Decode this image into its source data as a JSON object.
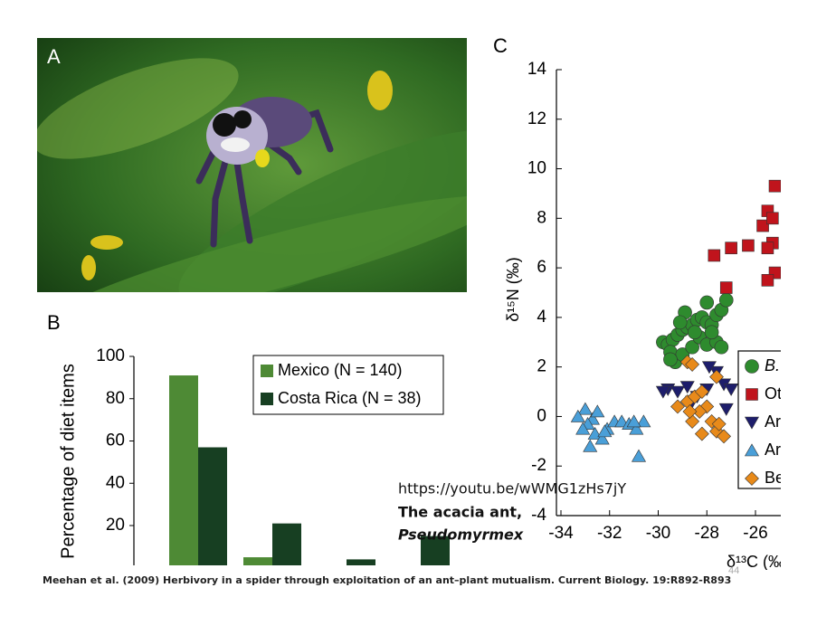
{
  "photo": {
    "label": "A"
  },
  "chart_data": [
    {
      "type": "bar",
      "panel_label": "B",
      "y_label": "Percentage of diet items",
      "categories": [
        null,
        null,
        null,
        null
      ],
      "series": [
        {
          "name": "Mexico (N = 140)",
          "color": "#4e8a35",
          "values": [
            91,
            5,
            1,
            1
          ]
        },
        {
          "name": "Costa Rica (N = 38)",
          "color": "#173f22",
          "values": [
            57,
            21,
            4,
            15
          ]
        }
      ],
      "ylim": [
        0,
        100
      ],
      "yticks": [
        20,
        40,
        60,
        80,
        100
      ],
      "legend": "top-right"
    },
    {
      "type": "scatter",
      "panel_label": "C",
      "x_label": "δ¹³C (‰)",
      "y_label": "δ¹⁵N (‰)",
      "xlim": [
        -34.2,
        -25
      ],
      "ylim": [
        -4,
        14
      ],
      "xticks": [
        -34,
        -32,
        -30,
        -28,
        -26
      ],
      "yticks": [
        -4,
        -2,
        0,
        2,
        4,
        6,
        8,
        10,
        12,
        14
      ],
      "legend": "right",
      "series": [
        {
          "name": "B.",
          "color": "#2e8b2e",
          "marker": "circle",
          "x": [
            -29.8,
            -29.6,
            -29.4,
            -29.2,
            -29,
            -28.8,
            -28.6,
            -28.4,
            -28.2,
            -28,
            -27.8,
            -27.6,
            -27.4,
            -27.2,
            -28.9,
            -28,
            -29.5,
            -29.3,
            -29,
            -28.6,
            -28.3,
            -28,
            -27.6,
            -27.4,
            -29.1,
            -28.5,
            -27.8,
            -29.5
          ],
          "values": [
            3.0,
            2.9,
            3.1,
            3.3,
            3.5,
            3.6,
            3.7,
            3.9,
            4.0,
            3.8,
            3.7,
            4.1,
            4.3,
            4.7,
            4.2,
            4.6,
            2.6,
            2.2,
            2.5,
            2.8,
            3.2,
            2.9,
            3.0,
            2.8,
            3.8,
            3.4,
            3.4,
            2.3
          ]
        },
        {
          "name": "Ot",
          "color": "#c0141c",
          "marker": "square",
          "x": [
            -27.7,
            -27.0,
            -26.3,
            -25.7,
            -25.5,
            -25.2,
            -25.3,
            -25.5,
            -25.2,
            -25.5,
            -27.2,
            -25.3
          ],
          "values": [
            6.5,
            6.8,
            6.9,
            7.7,
            8.3,
            9.3,
            7.0,
            6.8,
            5.8,
            5.5,
            5.2,
            8.0
          ]
        },
        {
          "name": "Ar",
          "color": "#1d1d6b",
          "marker": "triangle-down",
          "x": [
            -29.6,
            -29.2,
            -28.8,
            -28.4,
            -28.0,
            -27.6,
            -27.3,
            -27.0,
            -27.2,
            -28.6,
            -27.9,
            -29.8
          ],
          "values": [
            1.1,
            1.0,
            1.2,
            0.8,
            1.1,
            1.8,
            1.3,
            1.1,
            0.3,
            0.6,
            2.0,
            1.0
          ]
        },
        {
          "name": "Ar",
          "color": "#4a9fd8",
          "marker": "triangle-up",
          "x": [
            -33.0,
            -32.7,
            -32.5,
            -32.9,
            -32.6,
            -32.8,
            -32.3,
            -32.1,
            -31.8,
            -31.5,
            -31.2,
            -30.9,
            -30.6,
            -30.8,
            -33.3,
            -32.2,
            -31.0,
            -33.1
          ],
          "values": [
            0.3,
            -0.1,
            0.2,
            -0.3,
            -0.7,
            -1.2,
            -0.9,
            -0.5,
            -0.2,
            -0.2,
            -0.3,
            -0.5,
            -0.2,
            -1.6,
            0,
            -0.6,
            -0.2,
            -0.5
          ]
        },
        {
          "name": "Be",
          "color": "#e88a1a",
          "marker": "diamond",
          "x": [
            -28.8,
            -28.6,
            -27.6,
            -29.2,
            -28.8,
            -28.5,
            -28.2,
            -28.0,
            -27.8,
            -28.2,
            -27.6,
            -27.3,
            -28.6,
            -28.3,
            -27.5,
            -28.7
          ],
          "values": [
            2.2,
            2.1,
            1.6,
            0.4,
            0.6,
            0.8,
            1.0,
            0.4,
            -0.2,
            -0.7,
            -0.6,
            -0.8,
            -0.2,
            0.2,
            -0.3,
            0.2
          ]
        }
      ]
    }
  ],
  "overlay": {
    "link": "https://youtu.be/wWMG1zHs7jY",
    "caption_1": "The acacia ant,",
    "caption_2": "Pseudomyrmex"
  },
  "footer": {
    "citation": "Meehan et al. (2009) Herbivory in a spider through exploitation of an ant–plant mutualism. Current Biology. 19:R892-R893",
    "page_number": "44"
  }
}
